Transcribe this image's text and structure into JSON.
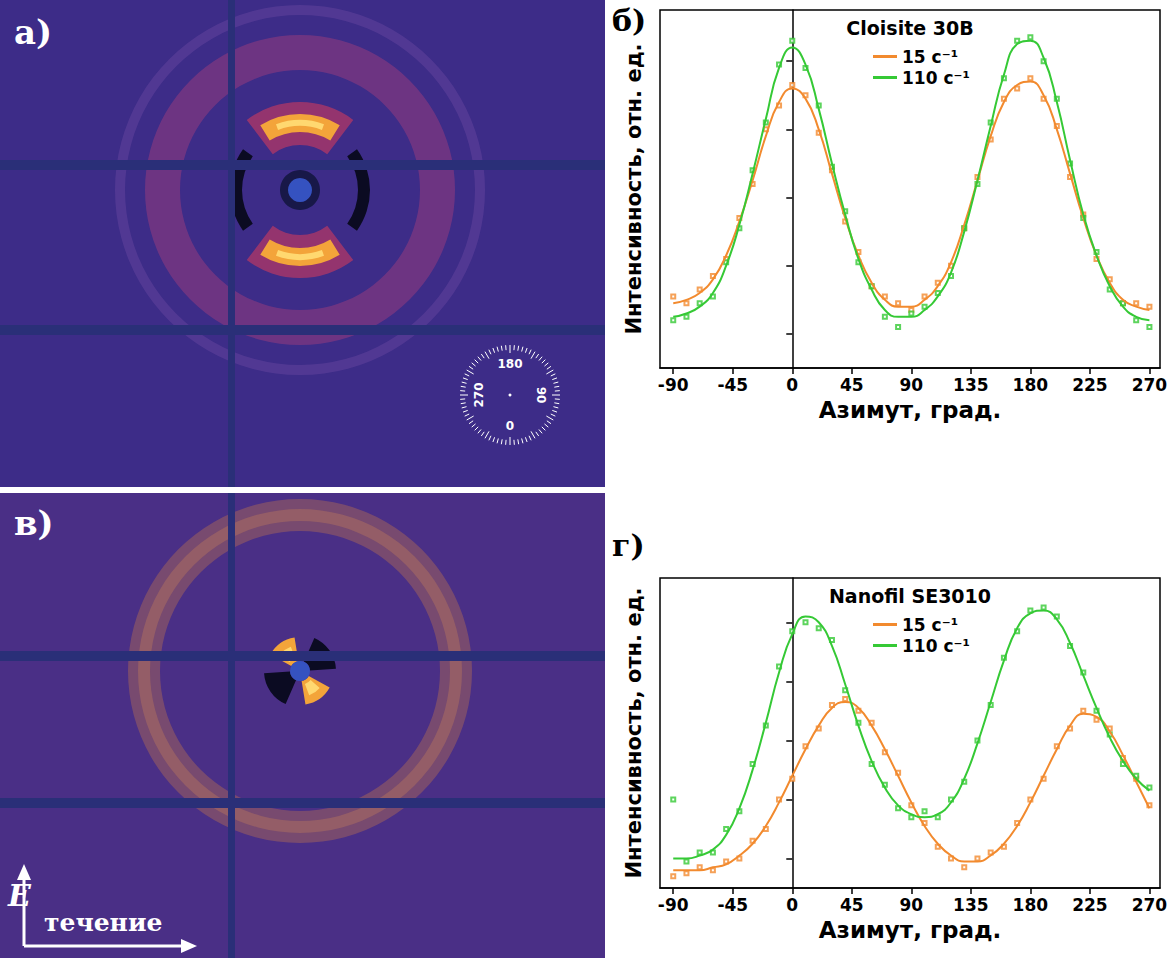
{
  "chart_data": [
    {
      "type": "line",
      "panel": "б)",
      "title": "Cloisite 30B",
      "x_label": "Азимут, град.",
      "y_label": "Интенсивность, отн. ед.",
      "x": [
        -90,
        -80,
        -70,
        -60,
        -50,
        -40,
        -30,
        -20,
        -10,
        0,
        10,
        20,
        30,
        40,
        50,
        60,
        70,
        80,
        90,
        100,
        110,
        120,
        130,
        140,
        150,
        160,
        170,
        180,
        190,
        200,
        210,
        220,
        230,
        240,
        250,
        260,
        270
      ],
      "xlim": [
        -100,
        278
      ],
      "xticks": [
        -90,
        -45,
        0,
        45,
        90,
        135,
        180,
        225,
        270
      ],
      "ylim": [
        0,
        1.05
      ],
      "yticks": [
        0.1,
        0.3,
        0.5,
        0.7,
        0.9
      ],
      "tick_labels": "x",
      "grid": false,
      "legend": "top",
      "marker": "square",
      "series": [
        {
          "name": "15 с⁻¹",
          "color": "#f28a2e",
          "values": [
            0.19,
            0.2,
            0.22,
            0.26,
            0.33,
            0.43,
            0.55,
            0.68,
            0.78,
            0.82,
            0.79,
            0.7,
            0.57,
            0.44,
            0.33,
            0.25,
            0.2,
            0.18,
            0.18,
            0.2,
            0.24,
            0.31,
            0.42,
            0.55,
            0.68,
            0.78,
            0.83,
            0.84,
            0.8,
            0.7,
            0.57,
            0.44,
            0.33,
            0.25,
            0.2,
            0.18,
            0.17
          ],
          "points": [
            0.21,
            0.19,
            0.23,
            0.27,
            0.32,
            0.44,
            0.54,
            0.7,
            0.77,
            0.83,
            0.8,
            0.69,
            0.58,
            0.43,
            0.34,
            0.24,
            0.21,
            0.19,
            0.17,
            0.21,
            0.25,
            0.3,
            0.41,
            0.56,
            0.67,
            0.79,
            0.82,
            0.85,
            0.79,
            0.71,
            0.56,
            0.45,
            0.32,
            0.26,
            0.19,
            0.19,
            0.18
          ]
        },
        {
          "name": "110 с⁻¹",
          "color": "#35c935",
          "values": [
            0.15,
            0.16,
            0.18,
            0.22,
            0.3,
            0.42,
            0.57,
            0.73,
            0.88,
            0.94,
            0.89,
            0.76,
            0.6,
            0.45,
            0.32,
            0.23,
            0.17,
            0.15,
            0.15,
            0.17,
            0.21,
            0.28,
            0.4,
            0.55,
            0.71,
            0.86,
            0.95,
            0.96,
            0.91,
            0.78,
            0.61,
            0.45,
            0.33,
            0.24,
            0.18,
            0.15,
            0.14
          ],
          "points": [
            0.14,
            0.15,
            0.19,
            0.21,
            0.31,
            0.41,
            0.58,
            0.72,
            0.89,
            0.96,
            0.88,
            0.77,
            0.59,
            0.46,
            0.31,
            0.24,
            0.15,
            0.12,
            0.16,
            0.18,
            0.22,
            0.27,
            0.41,
            0.54,
            0.72,
            0.85,
            0.96,
            0.97,
            0.9,
            0.79,
            0.6,
            0.44,
            0.34,
            0.23,
            0.19,
            0.14,
            0.12
          ]
        }
      ]
    },
    {
      "type": "line",
      "panel": "г)",
      "title": "Nanofil SE3010",
      "x_label": "Азимут, град.",
      "y_label": "Интенсивность, отн. ед.",
      "x": [
        -90,
        -80,
        -70,
        -60,
        -50,
        -40,
        -30,
        -20,
        -10,
        0,
        10,
        20,
        30,
        40,
        50,
        60,
        70,
        80,
        90,
        100,
        110,
        120,
        130,
        140,
        150,
        160,
        170,
        180,
        190,
        200,
        210,
        220,
        230,
        240,
        250,
        260,
        270
      ],
      "xlim": [
        -100,
        278
      ],
      "xticks": [
        -90,
        -45,
        0,
        45,
        90,
        135,
        180,
        225,
        270
      ],
      "ylim": [
        0,
        1.05
      ],
      "yticks": [
        0.1,
        0.3,
        0.5,
        0.7,
        0.9
      ],
      "tick_labels": "x",
      "grid": false,
      "legend": "top",
      "marker": "square",
      "series": [
        {
          "name": "15 с⁻¹",
          "color": "#f28a2e",
          "values": [
            0.06,
            0.06,
            0.06,
            0.07,
            0.08,
            0.11,
            0.15,
            0.21,
            0.29,
            0.38,
            0.47,
            0.55,
            0.61,
            0.63,
            0.61,
            0.55,
            0.47,
            0.38,
            0.29,
            0.21,
            0.15,
            0.11,
            0.09,
            0.09,
            0.11,
            0.15,
            0.21,
            0.29,
            0.38,
            0.47,
            0.55,
            0.59,
            0.58,
            0.53,
            0.45,
            0.36,
            0.27
          ],
          "points": [
            0.04,
            0.05,
            0.07,
            0.06,
            0.09,
            0.1,
            0.16,
            0.2,
            0.3,
            0.37,
            0.48,
            0.54,
            0.62,
            0.64,
            0.6,
            0.56,
            0.46,
            0.39,
            0.28,
            0.22,
            0.14,
            0.1,
            0.07,
            0.1,
            0.12,
            0.14,
            0.22,
            0.3,
            0.37,
            0.48,
            0.54,
            0.6,
            0.57,
            0.54,
            0.44,
            0.37,
            0.28
          ]
        },
        {
          "name": "110 с⁻¹",
          "color": "#35c935",
          "values": [
            0.1,
            0.1,
            0.11,
            0.13,
            0.18,
            0.27,
            0.4,
            0.56,
            0.73,
            0.86,
            0.92,
            0.9,
            0.82,
            0.69,
            0.55,
            0.43,
            0.34,
            0.28,
            0.25,
            0.24,
            0.25,
            0.29,
            0.37,
            0.49,
            0.63,
            0.77,
            0.88,
            0.93,
            0.94,
            0.91,
            0.83,
            0.72,
            0.61,
            0.51,
            0.43,
            0.37,
            0.33
          ],
          "points": [
            0.3,
            0.09,
            0.12,
            0.12,
            0.2,
            0.26,
            0.42,
            0.55,
            0.75,
            0.87,
            0.9,
            0.88,
            0.84,
            0.67,
            0.56,
            0.42,
            0.35,
            0.27,
            0.24,
            0.26,
            0.24,
            0.3,
            0.36,
            0.5,
            0.62,
            0.78,
            0.87,
            0.94,
            0.95,
            0.92,
            0.82,
            0.73,
            0.6,
            0.52,
            0.42,
            0.38,
            0.34
          ]
        }
      ]
    }
  ],
  "images": [
    {
      "label": "а)",
      "dial_ticks": [
        0,
        90,
        180,
        270
      ]
    },
    {
      "label": "в)",
      "field_label": "E",
      "flow_label": "течение"
    }
  ]
}
